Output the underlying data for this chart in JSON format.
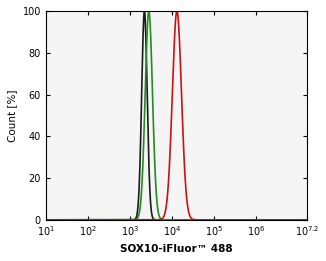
{
  "title": "",
  "xlabel": "SOX10-iFluor™ 488",
  "ylabel": "Count [%]",
  "xmin": 10,
  "xmax": 15850000.0,
  "ymin": 0,
  "ymax": 100,
  "x_ticks": [
    10,
    100,
    1000,
    10000,
    100000,
    1000000,
    15850000.0
  ],
  "black_peak": 2200,
  "black_sigma": 0.15,
  "green_peak": 2800,
  "green_sigma": 0.2,
  "red_peak": 13000,
  "red_sigma": 0.25,
  "black_color": "#1a1a1a",
  "green_color": "#228B22",
  "red_color": "#cc1111",
  "background_color": "#ffffff",
  "plot_bg_color": "#f5f5f5",
  "linewidth": 1.2
}
